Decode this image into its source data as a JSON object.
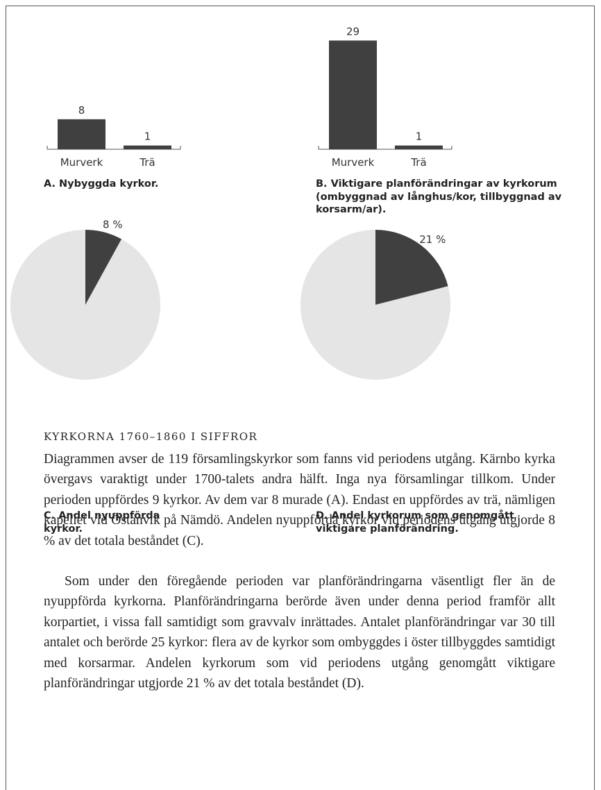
{
  "chart_data": [
    {
      "type": "bar",
      "title": "A. Nybyggda kyrkor.",
      "categories": [
        "Murverk",
        "Trä"
      ],
      "values": [
        8,
        1
      ],
      "color": "#404040"
    },
    {
      "type": "bar",
      "title": "B. Viktigare planförändringar av kyrkorum (ombyggnad av långhus/kor, tillbyggnad av korsarm/ar).",
      "categories": [
        "Murverk",
        "Trä"
      ],
      "values": [
        29,
        1
      ],
      "color": "#404040"
    },
    {
      "type": "pie",
      "title": "C. Andel nyuppförda kyrkor.",
      "values": [
        8
      ],
      "value_labels": [
        "8 %"
      ],
      "color": "#404040",
      "background": "#e5e5e5"
    },
    {
      "type": "pie",
      "title": "D. Andel kyrkorum som genomgått viktigare planförändring.",
      "values": [
        21
      ],
      "value_labels": [
        "21 %"
      ],
      "color": "#404040",
      "background": "#e5e5e5"
    }
  ],
  "heading": "KYRKORNA 1760–1860 I SIFFROR",
  "paragraphs": [
    "Diagrammen avser de 119 församlingskyrkor som fanns vid periodens utgång. Kärnbo kyrka övergavs varaktigt under 1700-talets andra hälft. Inga nya församlingar tillkom. Under perioden uppfördes 9 kyrkor. Av dem var 8 murade (A). Endast en uppfördes av trä, nämligen kapellet vid Östanvik på Nämdö. Andelen nyuppförda kyrkor vid periodens utgång utgjorde 8 % av det totala beståndet (C).",
    "Som under den föregående perioden var planförändringarna väsentligt fler än de nyuppförda kyrkorna. Planförändringarna berörde även under denna period framför allt korpartiet, i vissa fall samtidigt som gravvalv inrättades. Antalet planförändringar var 30 till antalet och berörde 25 kyrkor: flera av de kyrkor som ombyggdes i öster tillbyggdes samtidigt med korsarmar. Andelen kyrkorum som vid periodens utgång genomgått viktigare planförändringar utgjorde 21 % av det totala beståndet (D)."
  ]
}
